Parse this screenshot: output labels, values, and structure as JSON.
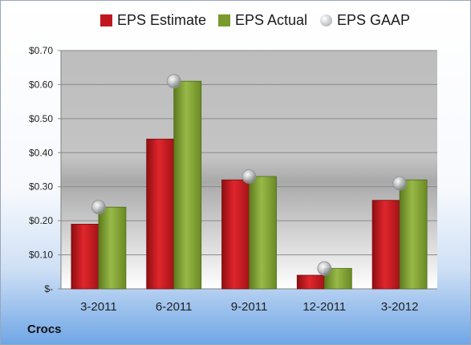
{
  "company": "Crocs",
  "colors": {
    "estimate": "#c0181f",
    "actual": "#7a9a2c",
    "gaap": "#b9bcc0",
    "plot_top": "#bdbdbd",
    "plot_bottom": "#ffffff"
  },
  "chart_data": {
    "type": "bar",
    "categories": [
      "3-2011",
      "6-2011",
      "9-2011",
      "12-2011",
      "3-2012"
    ],
    "series": [
      {
        "name": "EPS Estimate",
        "kind": "bar",
        "values": [
          0.19,
          0.44,
          0.32,
          0.04,
          0.26
        ]
      },
      {
        "name": "EPS Actual",
        "kind": "bar",
        "values": [
          0.24,
          0.61,
          0.33,
          0.06,
          0.32
        ]
      },
      {
        "name": "EPS GAAP",
        "kind": "marker",
        "values": [
          0.24,
          0.61,
          0.33,
          0.06,
          0.31
        ]
      }
    ],
    "y_ticks": [
      "$-",
      "$0.10",
      "$0.20",
      "$0.30",
      "$0.40",
      "$0.50",
      "$0.60",
      "$0.70"
    ],
    "ylim": [
      0,
      0.7
    ],
    "grid": true,
    "legend_position": "top"
  }
}
